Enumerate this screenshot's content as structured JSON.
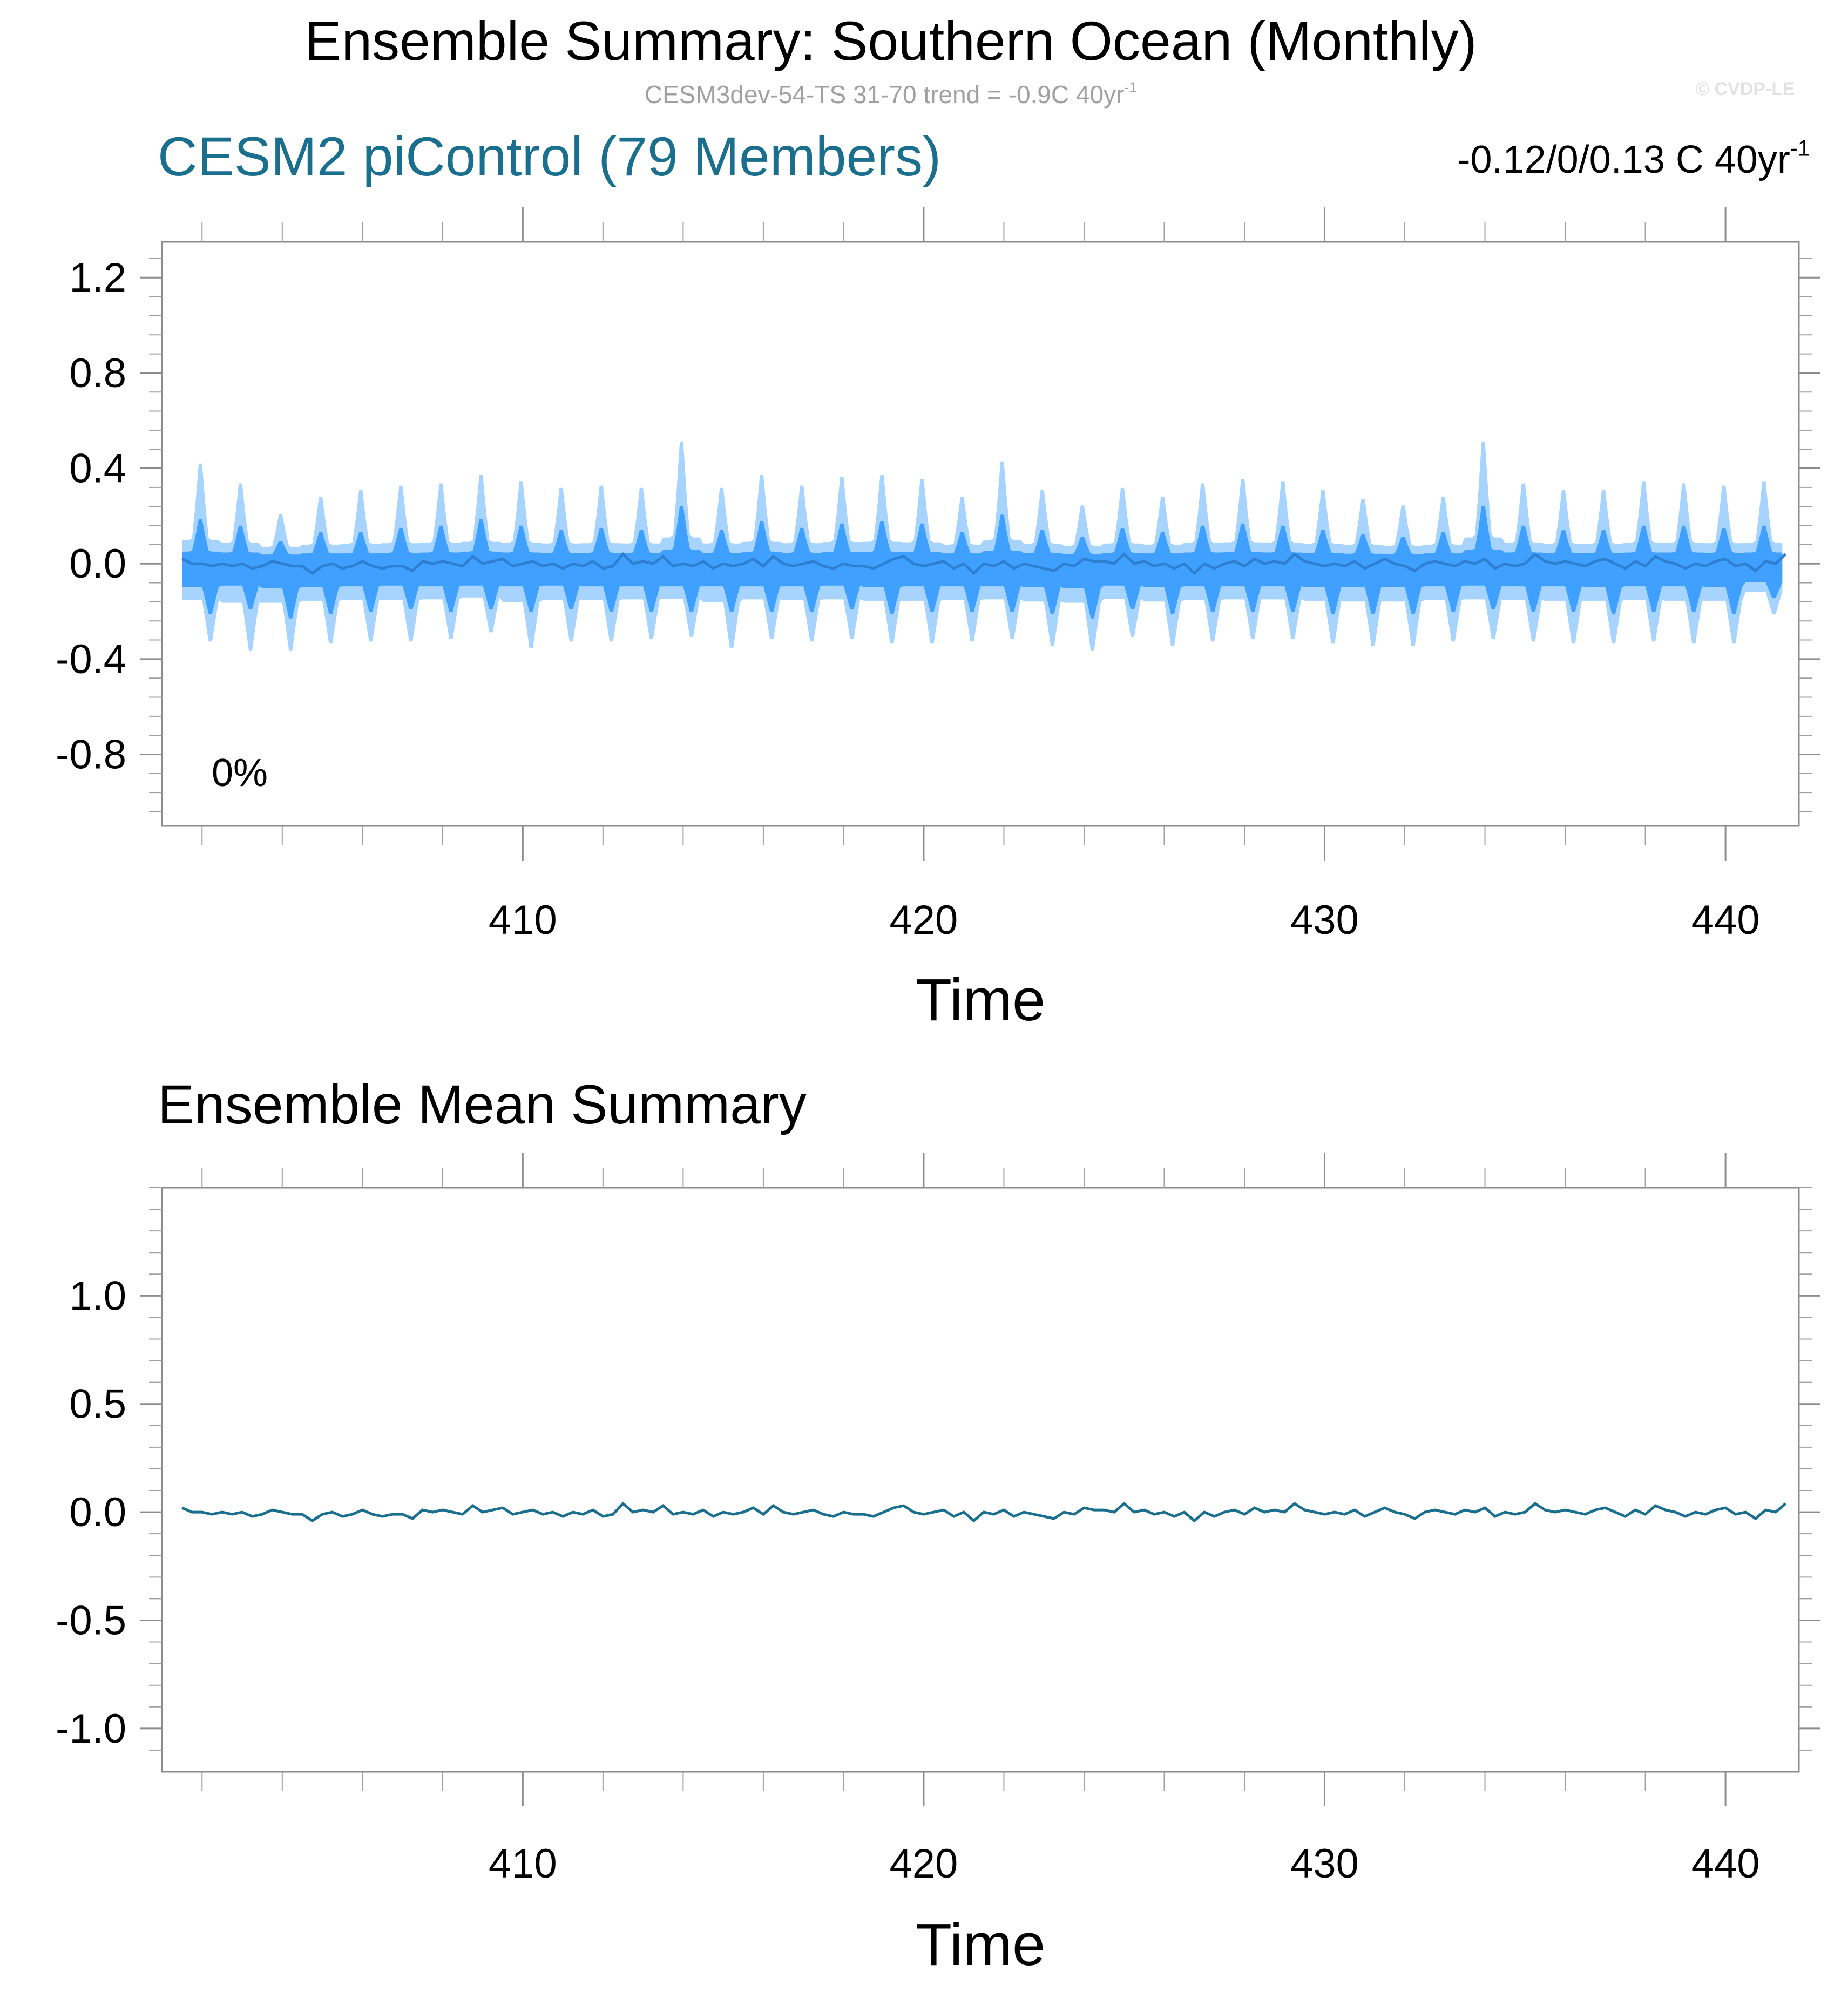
{
  "title": "Ensemble Summary: Southern Ocean (Monthly)",
  "subtitle": {
    "text": "CESM3dev-54-TS 31-70 trend = -0.9C 40yr",
    "sup": "-1"
  },
  "watermark": "© CVDP-LE",
  "colors": {
    "outer_band": "#a6d4ff",
    "inner_band": "#3fa0ff",
    "ensemble_mean_top": "#2f7fd0",
    "ensemble_mean_bottom": "#1a6e8e",
    "panel1_title": "#1a6e8e",
    "subtitle": "#a0a0a0"
  },
  "panel1": {
    "title": "CESM2 piControl (79 Members)",
    "trend": {
      "text": "-0.12/0/0.13 C 40yr",
      "sup": "-1"
    },
    "percent_label": "0%",
    "xlabel": "Time"
  },
  "panel2": {
    "title": "Ensemble Mean Summary",
    "xlabel": "Time"
  },
  "chart_data": [
    {
      "type": "area",
      "title": "CESM2 piControl (79 Members)",
      "xlabel": "Time",
      "ylabel": "",
      "xlim": [
        401.0,
        441.83
      ],
      "ylim": [
        -1.1,
        1.35
      ],
      "x_ticks": [
        410,
        420,
        430,
        440
      ],
      "y_ticks": [
        1.2,
        0.8,
        0.4,
        0.0,
        -0.4,
        -0.8
      ],
      "y_tick_labels": [
        "1.2",
        "0.8",
        "0.4",
        "0.0",
        "-0.4",
        "-0.8"
      ],
      "time_start": 401.5,
      "time_step": 0.0833333,
      "annual_peaks": [
        {
          "year": 401.5,
          "outer_high": 0.45,
          "inner_high": 0.2,
          "outer_low": -0.34,
          "inner_low": -0.22
        },
        {
          "year": 402.5,
          "outer_high": 0.36,
          "inner_high": 0.17,
          "outer_low": -0.38,
          "inner_low": -0.2
        },
        {
          "year": 403.5,
          "outer_high": 0.22,
          "inner_high": 0.1,
          "outer_low": -0.38,
          "inner_low": -0.24
        },
        {
          "year": 404.5,
          "outer_high": 0.3,
          "inner_high": 0.14,
          "outer_low": -0.35,
          "inner_low": -0.22
        },
        {
          "year": 405.5,
          "outer_high": 0.33,
          "inner_high": 0.14,
          "outer_low": -0.34,
          "inner_low": -0.21
        },
        {
          "year": 406.5,
          "outer_high": 0.35,
          "inner_high": 0.16,
          "outer_low": -0.34,
          "inner_low": -0.2
        },
        {
          "year": 407.5,
          "outer_high": 0.36,
          "inner_high": 0.17,
          "outer_low": -0.33,
          "inner_low": -0.21
        },
        {
          "year": 408.5,
          "outer_high": 0.4,
          "inner_high": 0.2,
          "outer_low": -0.3,
          "inner_low": -0.2
        },
        {
          "year": 409.5,
          "outer_high": 0.37,
          "inner_high": 0.17,
          "outer_low": -0.37,
          "inner_low": -0.21
        },
        {
          "year": 410.5,
          "outer_high": 0.34,
          "inner_high": 0.15,
          "outer_low": -0.34,
          "inner_low": -0.2
        },
        {
          "year": 411.5,
          "outer_high": 0.35,
          "inner_high": 0.16,
          "outer_low": -0.34,
          "inner_low": -0.21
        },
        {
          "year": 412.5,
          "outer_high": 0.34,
          "inner_high": 0.15,
          "outer_low": -0.33,
          "inner_low": -0.21
        },
        {
          "year": 413.5,
          "outer_high": 0.55,
          "inner_high": 0.26,
          "outer_low": -0.32,
          "inner_low": -0.21
        },
        {
          "year": 414.5,
          "outer_high": 0.34,
          "inner_high": 0.15,
          "outer_low": -0.37,
          "inner_low": -0.21
        },
        {
          "year": 415.5,
          "outer_high": 0.4,
          "inner_high": 0.19,
          "outer_low": -0.33,
          "inner_low": -0.21
        },
        {
          "year": 416.5,
          "outer_high": 0.35,
          "inner_high": 0.16,
          "outer_low": -0.34,
          "inner_low": -0.21
        },
        {
          "year": 417.5,
          "outer_high": 0.39,
          "inner_high": 0.18,
          "outer_low": -0.33,
          "inner_low": -0.2
        },
        {
          "year": 418.5,
          "outer_high": 0.4,
          "inner_high": 0.19,
          "outer_low": -0.35,
          "inner_low": -0.22
        },
        {
          "year": 419.5,
          "outer_high": 0.38,
          "inner_high": 0.18,
          "outer_low": -0.35,
          "inner_low": -0.21
        },
        {
          "year": 420.5,
          "outer_high": 0.3,
          "inner_high": 0.14,
          "outer_low": -0.34,
          "inner_low": -0.21
        },
        {
          "year": 421.5,
          "outer_high": 0.46,
          "inner_high": 0.22,
          "outer_low": -0.33,
          "inner_low": -0.21
        },
        {
          "year": 422.5,
          "outer_high": 0.33,
          "inner_high": 0.15,
          "outer_low": -0.36,
          "inner_low": -0.22
        },
        {
          "year": 423.5,
          "outer_high": 0.26,
          "inner_high": 0.12,
          "outer_low": -0.38,
          "inner_low": -0.24
        },
        {
          "year": 424.5,
          "outer_high": 0.34,
          "inner_high": 0.16,
          "outer_low": -0.32,
          "inner_low": -0.2
        },
        {
          "year": 425.5,
          "outer_high": 0.3,
          "inner_high": 0.14,
          "outer_low": -0.36,
          "inner_low": -0.22
        },
        {
          "year": 426.5,
          "outer_high": 0.36,
          "inner_high": 0.17,
          "outer_low": -0.34,
          "inner_low": -0.21
        },
        {
          "year": 427.5,
          "outer_high": 0.38,
          "inner_high": 0.18,
          "outer_low": -0.33,
          "inner_low": -0.21
        },
        {
          "year": 428.5,
          "outer_high": 0.37,
          "inner_high": 0.17,
          "outer_low": -0.33,
          "inner_low": -0.21
        },
        {
          "year": 429.5,
          "outer_high": 0.33,
          "inner_high": 0.15,
          "outer_low": -0.35,
          "inner_low": -0.22
        },
        {
          "year": 430.5,
          "outer_high": 0.29,
          "inner_high": 0.13,
          "outer_low": -0.36,
          "inner_low": -0.22
        },
        {
          "year": 431.5,
          "outer_high": 0.26,
          "inner_high": 0.12,
          "outer_low": -0.36,
          "inner_low": -0.22
        },
        {
          "year": 432.5,
          "outer_high": 0.3,
          "inner_high": 0.14,
          "outer_low": -0.34,
          "inner_low": -0.21
        },
        {
          "year": 433.5,
          "outer_high": 0.55,
          "inner_high": 0.26,
          "outer_low": -0.33,
          "inner_low": -0.2
        },
        {
          "year": 434.5,
          "outer_high": 0.36,
          "inner_high": 0.17,
          "outer_low": -0.34,
          "inner_low": -0.21
        },
        {
          "year": 435.5,
          "outer_high": 0.33,
          "inner_high": 0.15,
          "outer_low": -0.35,
          "inner_low": -0.21
        },
        {
          "year": 436.5,
          "outer_high": 0.33,
          "inner_high": 0.15,
          "outer_low": -0.35,
          "inner_low": -0.22
        },
        {
          "year": 437.5,
          "outer_high": 0.37,
          "inner_high": 0.17,
          "outer_low": -0.34,
          "inner_low": -0.21
        },
        {
          "year": 438.5,
          "outer_high": 0.36,
          "inner_high": 0.17,
          "outer_low": -0.35,
          "inner_low": -0.21
        },
        {
          "year": 439.5,
          "outer_high": 0.35,
          "inner_high": 0.16,
          "outer_low": -0.35,
          "inner_low": -0.22
        },
        {
          "year": 440.5,
          "outer_high": 0.37,
          "inner_high": 0.17,
          "outer_low": -0.22,
          "inner_low": -0.15
        }
      ],
      "series": [
        {
          "values": [
            0.01,
            0.01,
            0.0,
            -0.01,
            0.01,
            0.0,
            -0.01,
            0.0,
            -0.02,
            -0.01,
            0.0,
            -0.01,
            0.01,
            0.0,
            -0.01,
            -0.02,
            -0.03,
            0.0,
            -0.01,
            0.0,
            -0.02,
            -0.01,
            0.0,
            -0.03
          ]
        }
      ]
    },
    {
      "type": "line",
      "title": "Ensemble Mean Summary",
      "xlabel": "Time",
      "ylabel": "",
      "xlim": [
        401.0,
        441.83
      ],
      "ylim": [
        -1.2,
        1.5
      ],
      "x_ticks": [
        410,
        420,
        430,
        440
      ],
      "y_ticks": [
        1.0,
        0.5,
        0.0,
        -0.5,
        -1.0
      ],
      "y_tick_labels": [
        "1.0",
        "0.5",
        "0.0",
        "-0.5",
        "-1.0"
      ],
      "series": [
        {
          "x_start": 401.5,
          "x_end": 441.5,
          "values": [
            0.02,
            0.0,
            0.0,
            -0.01,
            0.0,
            -0.01,
            0.0,
            -0.02,
            -0.01,
            0.01,
            0.0,
            -0.01,
            -0.01,
            -0.04,
            -0.01,
            0.0,
            -0.02,
            -0.01,
            0.01,
            -0.01,
            -0.02,
            -0.01,
            -0.01,
            -0.03,
            0.01,
            0.0,
            0.01,
            0.0,
            -0.01,
            0.03,
            0.0,
            0.01,
            0.02,
            -0.01,
            0.0,
            0.01,
            -0.01,
            0.0,
            -0.02,
            0.0,
            -0.01,
            0.01,
            -0.02,
            -0.01,
            0.04,
            0.0,
            0.01,
            0.0,
            0.03,
            -0.01,
            0.0,
            -0.01,
            0.01,
            -0.02,
            0.0,
            -0.01,
            0.0,
            0.02,
            -0.01,
            0.03,
            0.0,
            -0.01,
            0.0,
            0.01,
            -0.01,
            -0.02,
            0.0,
            -0.01,
            -0.01,
            -0.02,
            0.0,
            0.02,
            0.03,
            0.0,
            -0.01,
            0.0,
            0.01,
            -0.02,
            0.0,
            -0.04,
            0.0,
            -0.01,
            0.01,
            -0.02,
            0.0,
            -0.01,
            -0.02,
            -0.03,
            0.0,
            -0.01,
            0.02,
            0.01,
            0.01,
            0.0,
            0.04,
            0.0,
            0.01,
            -0.01,
            0.0,
            -0.02,
            0.0,
            -0.04,
            0.0,
            -0.02,
            0.0,
            0.01,
            -0.01,
            0.02,
            0.0,
            0.01,
            0.0,
            0.04,
            0.01,
            0.0,
            -0.01,
            0.0,
            -0.01,
            0.01,
            -0.02,
            0.0,
            0.02,
            0.0,
            -0.01,
            -0.03,
            0.0,
            0.01,
            0.0,
            -0.01,
            0.01,
            0.0,
            0.02,
            -0.02,
            0.0,
            -0.01,
            0.0,
            0.04,
            0.01,
            0.0,
            0.01,
            0.0,
            -0.01,
            0.01,
            0.02,
            0.0,
            -0.02,
            0.01,
            -0.01,
            0.03,
            0.01,
            0.0,
            -0.02,
            0.0,
            -0.01,
            0.01,
            0.02,
            -0.01,
            0.0,
            -0.03,
            0.01,
            0.0,
            0.04
          ]
        }
      ]
    }
  ]
}
